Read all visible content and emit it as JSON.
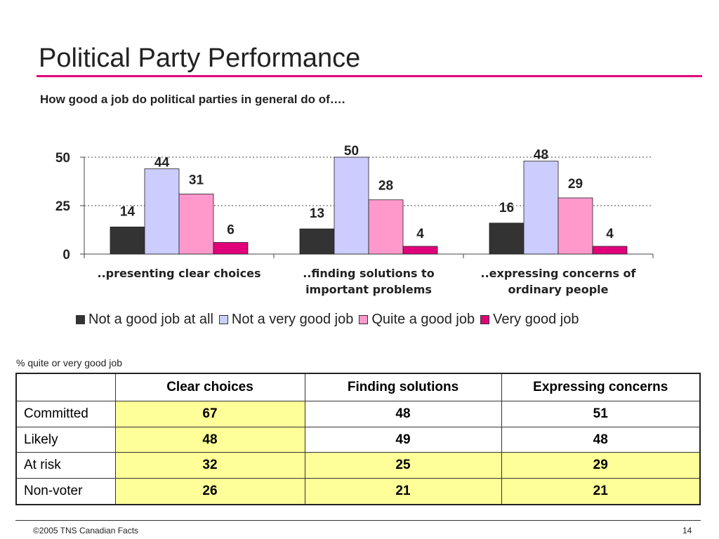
{
  "title": "Political Party Performance",
  "subtitle": "How good a job do political parties in general do of….",
  "chart_data": {
    "type": "bar",
    "categories": [
      "..presenting clear choices",
      "..finding solutions to important problems",
      "..expressing concerns of ordinary people"
    ],
    "category_label_lines": [
      [
        "..presenting clear choices"
      ],
      [
        "..finding solutions to",
        "important problems"
      ],
      [
        "..expressing concerns of",
        "ordinary people"
      ]
    ],
    "series": [
      {
        "name": "Not a good job at all",
        "color": "#333333",
        "values": [
          14,
          13,
          16
        ]
      },
      {
        "name": "Not a very good job",
        "color": "#ccccff",
        "values": [
          44,
          50,
          48
        ]
      },
      {
        "name": "Quite a good job",
        "color": "#ff99cc",
        "values": [
          31,
          28,
          29
        ]
      },
      {
        "name": "Very good job",
        "color": "#e0007a",
        "values": [
          6,
          4,
          4
        ]
      }
    ],
    "yticks": [
      0,
      25,
      50
    ],
    "ylim": [
      0,
      50
    ],
    "grid": "dotted at 25 and 50",
    "legend_position": "bottom"
  },
  "table": {
    "caption": "% quite or very good job",
    "columns": [
      "",
      "Clear choices",
      "Finding solutions",
      "Expressing concerns"
    ],
    "rows": [
      {
        "label": "Committed",
        "values": [
          "67",
          "48",
          "51"
        ],
        "highlight": [
          true,
          false,
          false
        ]
      },
      {
        "label": "Likely",
        "values": [
          "48",
          "49",
          "48"
        ],
        "highlight": [
          true,
          false,
          false
        ]
      },
      {
        "label": "At risk",
        "values": [
          "32",
          "25",
          "29"
        ],
        "highlight": [
          true,
          true,
          true
        ]
      },
      {
        "label": "Non-voter",
        "values": [
          "26",
          "21",
          "21"
        ],
        "highlight": [
          true,
          true,
          true
        ]
      }
    ],
    "highlight_color": "#ffff99"
  },
  "footer": {
    "copyright": "©2005 TNS Canadian Facts",
    "page_number": "14"
  },
  "colors": {
    "accent": "#e0007a"
  }
}
